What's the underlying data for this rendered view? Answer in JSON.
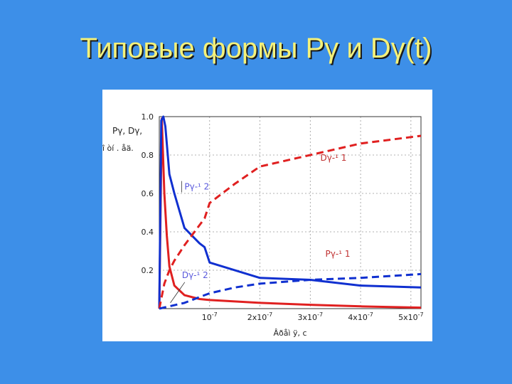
{
  "slide": {
    "title": "Типовые формы Pγ и Dγ(t)"
  },
  "chart_data": {
    "type": "line",
    "title": "",
    "xlabel": "Âðåì ÿ, c",
    "ylabel_lines": [
      "Pγ, Dγ,",
      "î òí . åä."
    ],
    "xlim": [
      0,
      5.2e-07
    ],
    "ylim": [
      0,
      1.0
    ],
    "grid": true,
    "x_ticks": [
      {
        "value": 1e-07,
        "base": "10",
        "exp": "-7"
      },
      {
        "value": 2e-07,
        "base": "2x10",
        "exp": "-7"
      },
      {
        "value": 3e-07,
        "base": "3x10",
        "exp": "-7"
      },
      {
        "value": 4e-07,
        "base": "4x10",
        "exp": "-7"
      },
      {
        "value": 5e-07,
        "base": "5x10",
        "exp": "-7"
      }
    ],
    "y_ticks": [
      {
        "value": 0.2,
        "label": "0.2"
      },
      {
        "value": 0.4,
        "label": "0.4"
      },
      {
        "value": 0.6,
        "label": "0.6"
      },
      {
        "value": 0.8,
        "label": "0.8"
      },
      {
        "value": 1.0,
        "label": "1.0"
      }
    ],
    "series": [
      {
        "name": "Pγ-¹ 1",
        "color": "#e02020",
        "dash": false,
        "x": [
          0,
          5e-09,
          1e-08,
          1.5e-08,
          2e-08,
          3e-08,
          5e-08,
          8e-08,
          1e-07,
          2e-07,
          3e-07,
          4e-07,
          5.2e-07
        ],
        "y": [
          0,
          0.99,
          0.6,
          0.38,
          0.22,
          0.12,
          0.07,
          0.05,
          0.045,
          0.03,
          0.02,
          0.012,
          0.005
        ]
      },
      {
        "name": "Pγ-¹ 2",
        "color": "#1030d0",
        "dash": false,
        "x": [
          0,
          4e-09,
          8e-09,
          1.2e-08,
          2e-08,
          3e-08,
          5e-08,
          8e-08,
          9e-08,
          1e-07,
          2e-07,
          3e-07,
          4e-07,
          5.2e-07
        ],
        "y": [
          0,
          0.98,
          1.0,
          0.95,
          0.7,
          0.6,
          0.42,
          0.34,
          0.32,
          0.24,
          0.16,
          0.15,
          0.12,
          0.11
        ]
      },
      {
        "name": "Dγ-¹ 1",
        "color": "#e02020",
        "dash": true,
        "x": [
          0,
          1e-08,
          2e-08,
          3e-08,
          5e-08,
          7e-08,
          9e-08,
          1e-07,
          1.5e-07,
          2e-07,
          3e-07,
          4e-07,
          5.2e-07
        ],
        "y": [
          0,
          0.13,
          0.2,
          0.25,
          0.33,
          0.4,
          0.47,
          0.55,
          0.65,
          0.74,
          0.8,
          0.86,
          0.9
        ]
      },
      {
        "name": "Dγ-¹ 2",
        "color": "#1030d0",
        "dash": true,
        "x": [
          0,
          5e-08,
          1e-07,
          1.5e-07,
          2e-07,
          3e-07,
          4e-07,
          5.2e-07
        ],
        "y": [
          0,
          0.03,
          0.08,
          0.11,
          0.13,
          0.15,
          0.16,
          0.18
        ]
      }
    ],
    "annotations": [
      {
        "text": "Dγ-¹ 1",
        "x": 3.2e-07,
        "y": 0.77,
        "color": "#c03030"
      },
      {
        "text": "Pγ-¹ 2",
        "x": 5e-08,
        "y": 0.62,
        "color": "#5a5adc",
        "box": true
      },
      {
        "text": "Pγ-¹ 1",
        "x": 3.3e-07,
        "y": 0.27,
        "color": "#c03030"
      },
      {
        "text": "Dγ-¹ 2",
        "x": 4.5e-08,
        "y": 0.16,
        "color": "#5a5adc",
        "leader_to": {
          "x": 2.2e-08,
          "y": 0.03
        }
      }
    ]
  }
}
